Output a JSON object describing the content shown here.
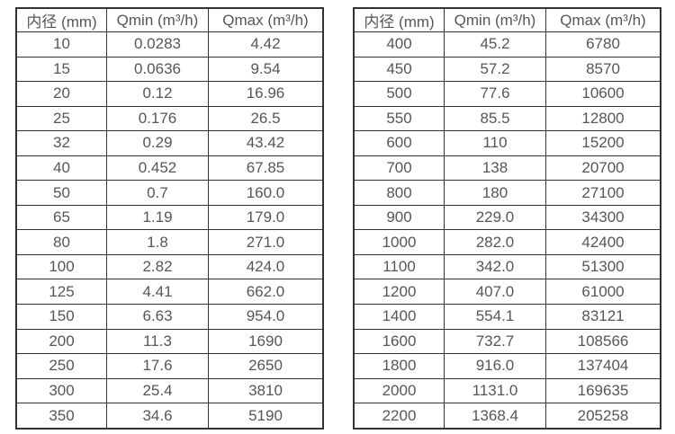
{
  "colors": {
    "background": "#ffffff",
    "border": "#333333",
    "text": "#565656"
  },
  "chart_data": [
    {
      "type": "table",
      "title": "",
      "columns": [
        "内径 (mm)",
        "Qmin (m³/h)",
        "Qmax (m³/h)"
      ],
      "rows": [
        [
          "10",
          "0.0283",
          "4.42"
        ],
        [
          "15",
          "0.0636",
          "9.54"
        ],
        [
          "20",
          "0.12",
          "16.96"
        ],
        [
          "25",
          "0.176",
          "26.5"
        ],
        [
          "32",
          "0.29",
          "43.42"
        ],
        [
          "40",
          "0.452",
          "67.85"
        ],
        [
          "50",
          "0.7",
          "160.0"
        ],
        [
          "65",
          "1.19",
          "179.0"
        ],
        [
          "80",
          "1.8",
          "271.0"
        ],
        [
          "100",
          "2.82",
          "424.0"
        ],
        [
          "125",
          "4.41",
          "662.0"
        ],
        [
          "150",
          "6.63",
          "954.0"
        ],
        [
          "200",
          "11.3",
          "1690"
        ],
        [
          "250",
          "17.6",
          "2650"
        ],
        [
          "300",
          "25.4",
          "3810"
        ],
        [
          "350",
          "34.6",
          "5190"
        ]
      ]
    },
    {
      "type": "table",
      "title": "",
      "columns": [
        "内径 (mm)",
        "Qmin (m³/h)",
        "Qmax (m³/h)"
      ],
      "rows": [
        [
          "400",
          "45.2",
          "6780"
        ],
        [
          "450",
          "57.2",
          "8570"
        ],
        [
          "500",
          "77.6",
          "10600"
        ],
        [
          "550",
          "85.5",
          "12800"
        ],
        [
          "600",
          "110",
          "15200"
        ],
        [
          "700",
          "138",
          "20700"
        ],
        [
          "800",
          "180",
          "27100"
        ],
        [
          "900",
          "229.0",
          "34300"
        ],
        [
          "1000",
          "282.0",
          "42400"
        ],
        [
          "1100",
          "342.0",
          "51300"
        ],
        [
          "1200",
          "407.0",
          "61000"
        ],
        [
          "1400",
          "554.1",
          "83121"
        ],
        [
          "1600",
          "732.7",
          "108566"
        ],
        [
          "1800",
          "916.0",
          "137404"
        ],
        [
          "2000",
          "1131.0",
          "169635"
        ],
        [
          "2200",
          "1368.4",
          "205258"
        ]
      ]
    }
  ]
}
